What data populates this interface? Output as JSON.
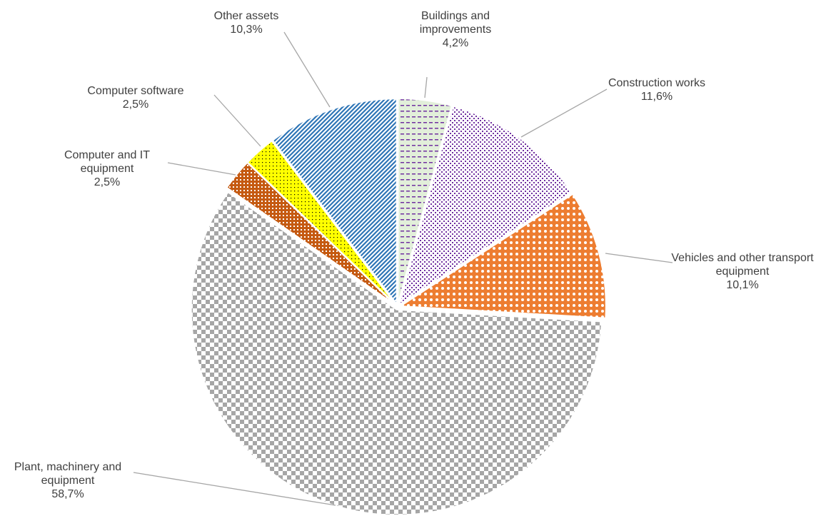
{
  "chart_data": {
    "type": "pie",
    "categories": [
      "Buildings and improvements",
      "Construction works",
      "Vehicles and other transport equipment",
      "Plant, machinery and equipment",
      "Computer and IT equipment",
      "Computer software",
      "Other assets"
    ],
    "values": [
      4.2,
      11.6,
      10.1,
      58.7,
      2.5,
      2.5,
      10.3
    ],
    "value_labels": [
      "4,2%",
      "11,6%",
      "10,1%",
      "58,7%",
      "2,5%",
      "2,5%",
      "10,3%"
    ],
    "colors": [
      "#e2efda",
      "#7030a0",
      "#ed7d31",
      "#a6a6a6",
      "#c55a11",
      "#ffff00",
      "#2e75b6"
    ]
  }
}
